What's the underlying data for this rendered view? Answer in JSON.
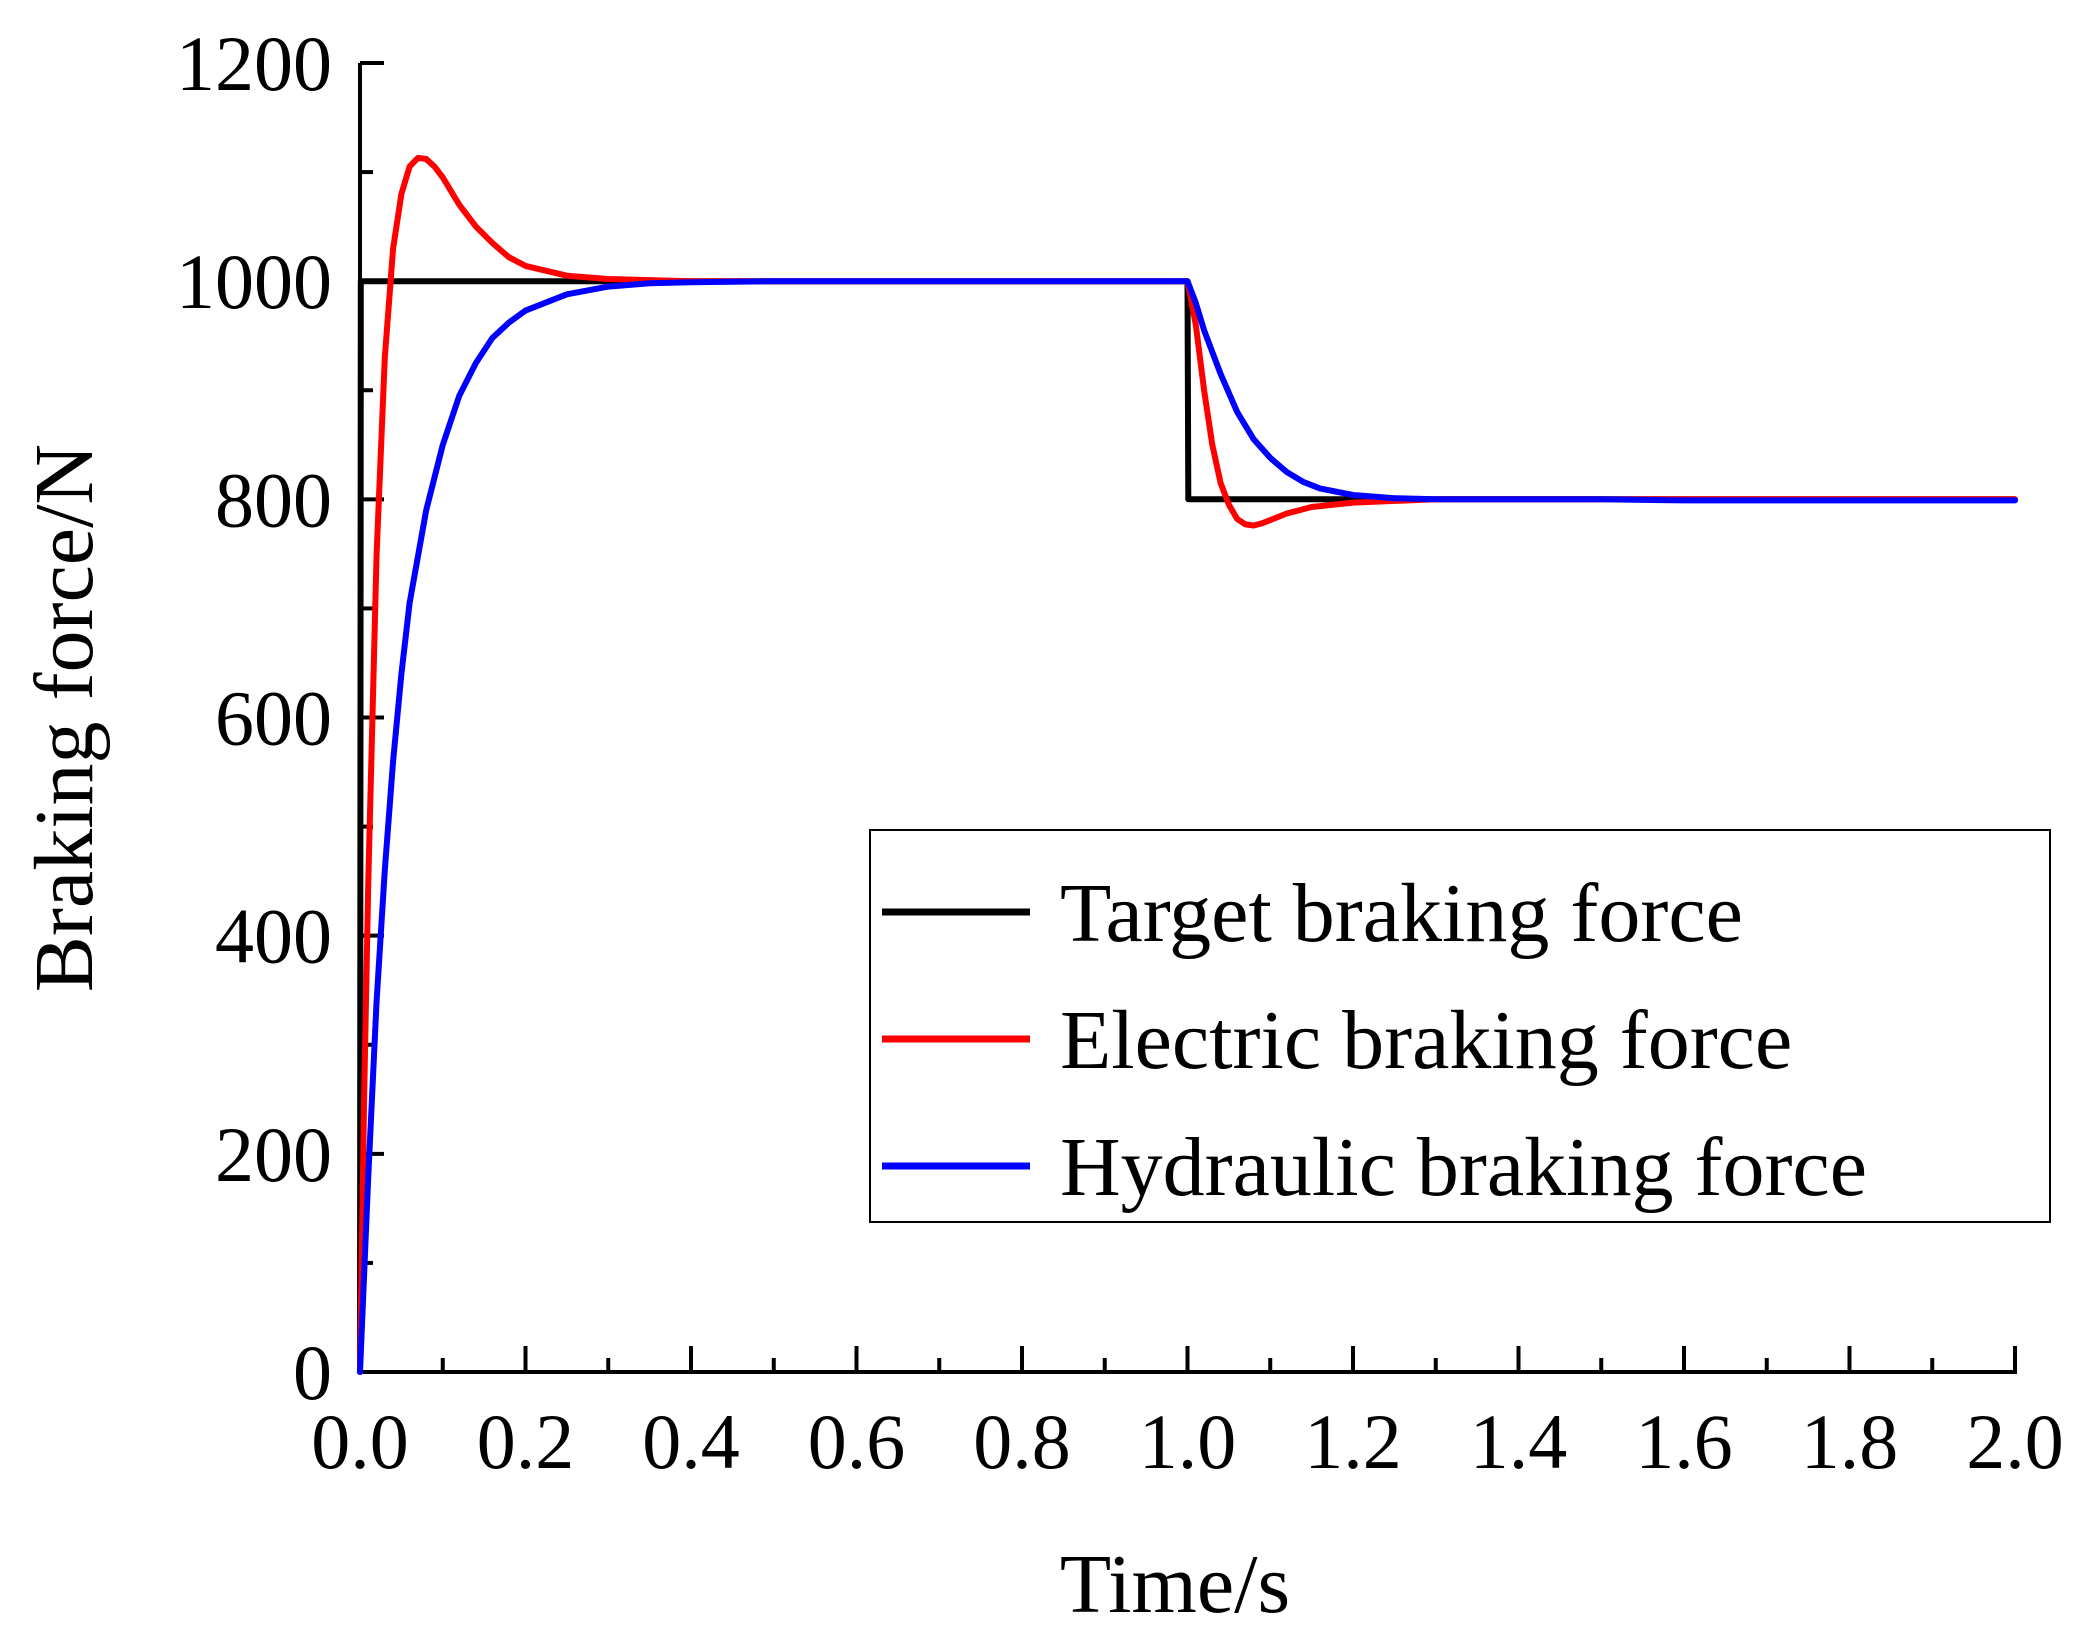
{
  "chart_data": {
    "type": "line",
    "title": "",
    "xlabel": "Time/s",
    "ylabel": "Braking force/N",
    "xlim": [
      0,
      2.0
    ],
    "ylim": [
      0,
      1200
    ],
    "x_ticks": [
      "0.0",
      "0.2",
      "0.4",
      "0.6",
      "0.8",
      "1.0",
      "1.2",
      "1.4",
      "1.6",
      "1.8",
      "2.0"
    ],
    "y_ticks": [
      "0",
      "200",
      "400",
      "600",
      "800",
      "1000",
      "1200"
    ],
    "x_minor_step": 0.1,
    "y_minor_step": 100,
    "grid": false,
    "legend_position": "center-right",
    "series": [
      {
        "name": "Target braking force",
        "color": "#000000",
        "points": [
          [
            0,
            0
          ],
          [
            0.001,
            1000
          ],
          [
            1.0,
            1000
          ],
          [
            1.001,
            800
          ],
          [
            2.0,
            800
          ]
        ]
      },
      {
        "name": "Electric braking force",
        "color": "#ff0000",
        "points": [
          [
            0,
            0
          ],
          [
            0.005,
            250
          ],
          [
            0.01,
            450
          ],
          [
            0.02,
            750
          ],
          [
            0.03,
            930
          ],
          [
            0.04,
            1030
          ],
          [
            0.05,
            1080
          ],
          [
            0.06,
            1105
          ],
          [
            0.07,
            1113
          ],
          [
            0.08,
            1112
          ],
          [
            0.09,
            1105
          ],
          [
            0.1,
            1095
          ],
          [
            0.12,
            1070
          ],
          [
            0.14,
            1050
          ],
          [
            0.16,
            1035
          ],
          [
            0.18,
            1022
          ],
          [
            0.2,
            1014
          ],
          [
            0.25,
            1005
          ],
          [
            0.3,
            1002
          ],
          [
            0.4,
            1000
          ],
          [
            1.0,
            1000
          ],
          [
            1.01,
            960
          ],
          [
            1.02,
            900
          ],
          [
            1.03,
            850
          ],
          [
            1.04,
            815
          ],
          [
            1.05,
            795
          ],
          [
            1.06,
            782
          ],
          [
            1.07,
            777
          ],
          [
            1.08,
            776
          ],
          [
            1.09,
            778
          ],
          [
            1.1,
            781
          ],
          [
            1.12,
            787
          ],
          [
            1.15,
            793
          ],
          [
            1.2,
            797
          ],
          [
            1.3,
            800
          ],
          [
            2.0,
            800
          ]
        ]
      },
      {
        "name": "Hydraulic braking force",
        "color": "#0000ff",
        "points": [
          [
            0,
            0
          ],
          [
            0.01,
            180
          ],
          [
            0.02,
            340
          ],
          [
            0.03,
            460
          ],
          [
            0.04,
            560
          ],
          [
            0.05,
            640
          ],
          [
            0.06,
            705
          ],
          [
            0.08,
            790
          ],
          [
            0.1,
            850
          ],
          [
            0.12,
            895
          ],
          [
            0.14,
            925
          ],
          [
            0.16,
            948
          ],
          [
            0.18,
            962
          ],
          [
            0.2,
            973
          ],
          [
            0.25,
            988
          ],
          [
            0.3,
            995
          ],
          [
            0.35,
            998
          ],
          [
            0.4,
            999
          ],
          [
            0.5,
            1000
          ],
          [
            1.0,
            1000
          ],
          [
            1.01,
            980
          ],
          [
            1.02,
            955
          ],
          [
            1.04,
            915
          ],
          [
            1.06,
            880
          ],
          [
            1.08,
            855
          ],
          [
            1.1,
            838
          ],
          [
            1.12,
            825
          ],
          [
            1.14,
            816
          ],
          [
            1.16,
            810
          ],
          [
            1.2,
            804
          ],
          [
            1.25,
            801
          ],
          [
            1.3,
            800
          ],
          [
            1.5,
            800
          ],
          [
            1.6,
            799
          ],
          [
            2.0,
            799
          ]
        ]
      }
    ]
  }
}
